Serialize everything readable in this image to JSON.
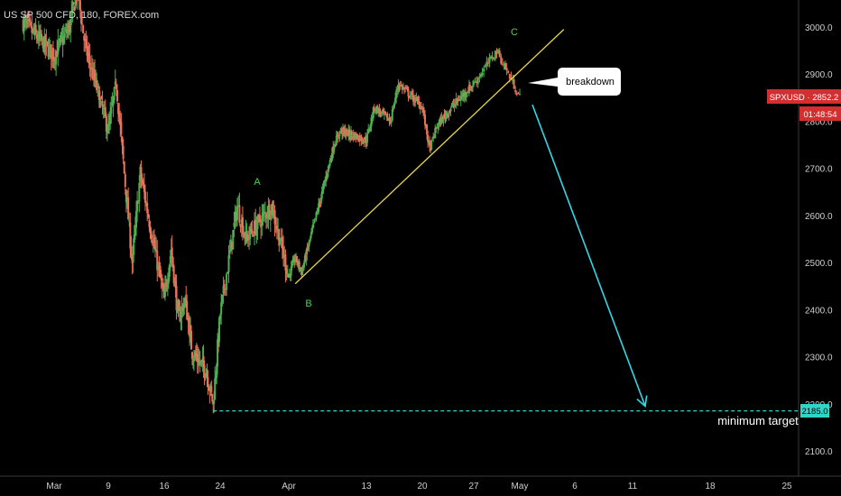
{
  "header": {
    "title": "US SP 500 CFD, 180, FOREX.com"
  },
  "price_tag": {
    "symbol_price": "SPXUSD · 2852.2",
    "countdown": "01:48:54"
  },
  "target_tag": "2185.0",
  "annotations": {
    "callout": "breakdown",
    "target_label": "minimum target",
    "wave_a": "A",
    "wave_b": "B",
    "wave_c": "C"
  },
  "colors": {
    "background": "#000000",
    "bull": "#4caf50",
    "bear": "#e8735a",
    "trendline": "#e6d34a",
    "projection": "#31d8e8",
    "target_line": "#2fd6c8",
    "price_tag": "#d32f2f",
    "wave_labels": "#4fd34f"
  },
  "chart_data": {
    "type": "candlestick",
    "title": "US SP 500 CFD, 180, FOREX.com",
    "y_axis": {
      "ticks": [
        3000,
        2900,
        2800,
        2700,
        2600,
        2500,
        2400,
        2300,
        2200,
        2100
      ],
      "tick_labels": [
        "3000.0",
        "2900.0",
        "2800.0",
        "2700.0",
        "2600.0",
        "2500.0",
        "2400.0",
        "2300.0",
        "2200.0",
        "2100.0"
      ],
      "range": [
        2030,
        3060
      ],
      "position": "right"
    },
    "x_axis": {
      "tick_labels": [
        "Mar",
        "9",
        "16",
        "24",
        "Apr",
        "13",
        "20",
        "27",
        "May",
        "6",
        "11",
        "18",
        "25"
      ],
      "tick_dates": [
        "2020-03-02",
        "2020-03-09",
        "2020-03-16",
        "2020-03-24",
        "2020-04-01",
        "2020-04-13",
        "2020-04-20",
        "2020-04-27",
        "2020-05-01",
        "2020-05-06",
        "2020-05-11",
        "2020-05-18",
        "2020-05-25"
      ]
    },
    "anchors": [
      {
        "date": "2020-02-27",
        "price": 3010
      },
      {
        "date": "2020-03-02",
        "price": 2940
      },
      {
        "date": "2020-03-04",
        "price": 3000
      },
      {
        "date": "2020-03-05",
        "price": 3080
      },
      {
        "date": "2020-03-06",
        "price": 2960
      },
      {
        "date": "2020-03-09",
        "price": 2780
      },
      {
        "date": "2020-03-10",
        "price": 2880
      },
      {
        "date": "2020-03-12",
        "price": 2500
      },
      {
        "date": "2020-03-13",
        "price": 2690
      },
      {
        "date": "2020-03-16",
        "price": 2420
      },
      {
        "date": "2020-03-17",
        "price": 2530
      },
      {
        "date": "2020-03-18",
        "price": 2380
      },
      {
        "date": "2020-03-19",
        "price": 2420
      },
      {
        "date": "2020-03-20",
        "price": 2310
      },
      {
        "date": "2020-03-22",
        "price": 2270
      },
      {
        "date": "2020-03-23",
        "price": 2200
      },
      {
        "date": "2020-03-24",
        "price": 2390
      },
      {
        "date": "2020-03-26",
        "price": 2620
      },
      {
        "date": "2020-03-27",
        "price": 2550
      },
      {
        "date": "2020-03-30",
        "price": 2620
      },
      {
        "date": "2020-04-01",
        "price": 2470
      },
      {
        "date": "2020-04-02",
        "price": 2510
      },
      {
        "date": "2020-04-03",
        "price": 2480
      },
      {
        "date": "2020-04-06",
        "price": 2640
      },
      {
        "date": "2020-04-08",
        "price": 2750
      },
      {
        "date": "2020-04-09",
        "price": 2780
      },
      {
        "date": "2020-04-13",
        "price": 2760
      },
      {
        "date": "2020-04-14",
        "price": 2830
      },
      {
        "date": "2020-04-16",
        "price": 2800
      },
      {
        "date": "2020-04-17",
        "price": 2880
      },
      {
        "date": "2020-04-20",
        "price": 2830
      },
      {
        "date": "2020-04-21",
        "price": 2740
      },
      {
        "date": "2020-04-22",
        "price": 2790
      },
      {
        "date": "2020-04-24",
        "price": 2830
      },
      {
        "date": "2020-04-27",
        "price": 2880
      },
      {
        "date": "2020-04-29",
        "price": 2950
      },
      {
        "date": "2020-04-30",
        "price": 2900
      },
      {
        "date": "2020-05-01",
        "price": 2852
      }
    ],
    "trendline": [
      {
        "date": "2020-04-02",
        "price": 2455
      },
      {
        "date": "2020-05-05",
        "price": 2995
      }
    ],
    "projection": [
      {
        "date": "2020-05-01",
        "price": 2835
      },
      {
        "date": "2020-05-11",
        "price": 2195
      }
    ],
    "target_level": 2185.0,
    "wave_labels": [
      {
        "label": "A",
        "date": "2020-03-26",
        "price": 2680
      },
      {
        "label": "B",
        "date": "2020-04-02",
        "price": 2395
      },
      {
        "label": "C",
        "date": "2020-04-30",
        "price": 2985
      }
    ],
    "last_price": 2852.2,
    "grid": false,
    "legend": "none"
  }
}
